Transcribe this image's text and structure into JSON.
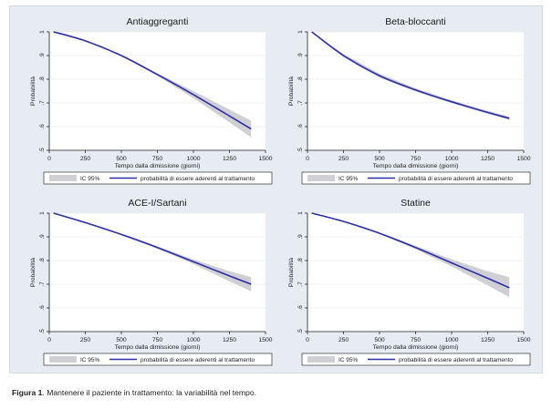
{
  "caption": {
    "label": "Figura 1",
    "text": ". Mantenere il paziente in trattamento: la variabilità nel tempo."
  },
  "colors": {
    "background": "#e6ecf2",
    "plot_area": "#ffffff",
    "line": "#2a2ea8",
    "ci_band": "#cfcfd4",
    "axis": "#222222"
  },
  "chart_data": [
    {
      "type": "line",
      "title": "Antiaggreganti",
      "xlabel": "Tempo dalla dimissione (giorni)",
      "ylabel": "Probabilità",
      "xlim": [
        0,
        1500
      ],
      "ylim": [
        0.5,
        1
      ],
      "xticks": [
        0,
        250,
        500,
        750,
        1000,
        1250,
        1500
      ],
      "yticks": [
        {
          "value": 0.5,
          "label": ".5"
        },
        {
          "value": 0.6,
          "label": ".6"
        },
        {
          "value": 0.7,
          "label": ".7"
        },
        {
          "value": 0.8,
          "label": ".8"
        },
        {
          "value": 0.9,
          "label": ".9"
        },
        {
          "value": 1,
          "label": "1"
        }
      ],
      "grid": true,
      "legend": "bottom",
      "series": [
        {
          "name": "probabilità di essere aderenti al trattamento",
          "x": [
            30,
            250,
            500,
            750,
            1000,
            1250,
            1400
          ],
          "y": [
            1.0,
            0.962,
            0.9,
            0.82,
            0.735,
            0.645,
            0.59
          ]
        },
        {
          "name": "IC 95%",
          "x": [
            30,
            250,
            500,
            750,
            1000,
            1250,
            1400
          ],
          "lower": [
            1.0,
            0.96,
            0.897,
            0.815,
            0.72,
            0.618,
            0.555
          ],
          "upper": [
            1.0,
            0.964,
            0.903,
            0.825,
            0.75,
            0.672,
            0.625
          ]
        }
      ]
    },
    {
      "type": "line",
      "title": "Beta-bloccanti",
      "xlabel": "Tempo dalla dimissione (giorni)",
      "ylabel": "Probabilità",
      "xlim": [
        0,
        1500
      ],
      "ylim": [
        0.5,
        1
      ],
      "xticks": [
        0,
        250,
        500,
        750,
        1000,
        1250,
        1500
      ],
      "yticks": [
        {
          "value": 0.5,
          "label": ".5"
        },
        {
          "value": 0.6,
          "label": ".6"
        },
        {
          "value": 0.7,
          "label": ".7"
        },
        {
          "value": 0.8,
          "label": ".8"
        },
        {
          "value": 0.9,
          "label": ".9"
        },
        {
          "value": 1,
          "label": "1"
        }
      ],
      "grid": true,
      "legend": "bottom",
      "series": [
        {
          "name": "probabilità di essere aderenti al trattamento",
          "x": [
            30,
            250,
            500,
            750,
            1000,
            1250,
            1400
          ],
          "y": [
            1.0,
            0.9,
            0.815,
            0.755,
            0.705,
            0.66,
            0.635
          ]
        },
        {
          "name": "IC 95%",
          "x": [
            30,
            250,
            500,
            750,
            1000,
            1250,
            1400
          ],
          "lower": [
            1.0,
            0.893,
            0.807,
            0.748,
            0.699,
            0.654,
            0.628
          ],
          "upper": [
            1.0,
            0.907,
            0.823,
            0.762,
            0.711,
            0.666,
            0.642
          ]
        }
      ]
    },
    {
      "type": "line",
      "title": "ACE-I/Sartani",
      "xlabel": "Tempo dalla dimissione (giorni)",
      "ylabel": "Probabilità",
      "xlim": [
        0,
        1500
      ],
      "ylim": [
        0.5,
        1
      ],
      "xticks": [
        0,
        250,
        500,
        750,
        1000,
        1250,
        1500
      ],
      "yticks": [
        {
          "value": 0.5,
          "label": ".5"
        },
        {
          "value": 0.6,
          "label": ".6"
        },
        {
          "value": 0.7,
          "label": ".7"
        },
        {
          "value": 0.8,
          "label": ".8"
        },
        {
          "value": 0.9,
          "label": ".9"
        },
        {
          "value": 1,
          "label": "1"
        }
      ],
      "grid": true,
      "legend": "bottom",
      "series": [
        {
          "name": "probabilità di essere aderenti al trattamento",
          "x": [
            30,
            250,
            500,
            750,
            1000,
            1250,
            1400
          ],
          "y": [
            1.0,
            0.96,
            0.91,
            0.855,
            0.795,
            0.735,
            0.7
          ]
        },
        {
          "name": "IC 95%",
          "x": [
            30,
            250,
            500,
            750,
            1000,
            1250,
            1400
          ],
          "lower": [
            1.0,
            0.958,
            0.907,
            0.85,
            0.785,
            0.712,
            0.67
          ]
        },
        {
          "name": "",
          "x": [
            30,
            250,
            500,
            750,
            1000,
            1250,
            1400
          ],
          "upper": [
            1.0,
            0.962,
            0.913,
            0.86,
            0.805,
            0.755,
            0.73
          ]
        }
      ]
    },
    {
      "type": "line",
      "title": "Statine",
      "xlabel": "Tempo dalla dimissione (giorni)",
      "ylabel": "Probabilità",
      "xlim": [
        0,
        1500
      ],
      "ylim": [
        0.5,
        1
      ],
      "xticks": [
        0,
        250,
        500,
        750,
        1000,
        1250,
        1500
      ],
      "yticks": [
        {
          "value": 0.5,
          "label": ".5"
        },
        {
          "value": 0.6,
          "label": ".6"
        },
        {
          "value": 0.7,
          "label": ".7"
        },
        {
          "value": 0.8,
          "label": ".8"
        },
        {
          "value": 0.9,
          "label": ".9"
        },
        {
          "value": 1,
          "label": "1"
        }
      ],
      "grid": true,
      "legend": "bottom",
      "series": [
        {
          "name": "probabilità di essere aderenti al trattamento",
          "x": [
            30,
            250,
            500,
            750,
            1000,
            1250,
            1400
          ],
          "y": [
            1.0,
            0.965,
            0.915,
            0.855,
            0.79,
            0.725,
            0.685
          ]
        },
        {
          "name": "IC 95%",
          "x": [
            30,
            250,
            500,
            750,
            1000,
            1250,
            1400
          ],
          "lower": [
            1.0,
            0.963,
            0.912,
            0.848,
            0.775,
            0.695,
            0.645
          ],
          "upper": [
            1.0,
            0.967,
            0.918,
            0.862,
            0.805,
            0.755,
            0.73
          ]
        }
      ]
    }
  ]
}
